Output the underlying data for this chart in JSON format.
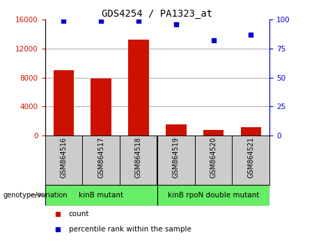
{
  "title": "GDS4254 / PA1323_at",
  "samples": [
    "GSM864516",
    "GSM864517",
    "GSM864518",
    "GSM864519",
    "GSM864520",
    "GSM864521"
  ],
  "counts": [
    9000,
    7900,
    13200,
    1500,
    700,
    1100
  ],
  "percentile_ranks": [
    99,
    99,
    99,
    96,
    82,
    87
  ],
  "ylim_left": [
    0,
    16000
  ],
  "ylim_right": [
    0,
    100
  ],
  "yticks_left": [
    0,
    4000,
    8000,
    12000,
    16000
  ],
  "yticks_right": [
    0,
    25,
    50,
    75,
    100
  ],
  "bar_color": "#cc1100",
  "dot_color": "#0000cc",
  "group1_label": "kinB mutant",
  "group2_label": "kinB rpoN double mutant",
  "group1_indices": [
    0,
    1,
    2
  ],
  "group2_indices": [
    3,
    4,
    5
  ],
  "group_bg_color": "#66ee66",
  "sample_bg_color": "#cccccc",
  "legend_count_label": "count",
  "legend_pct_label": "percentile rank within the sample",
  "genotype_label": "genotype/variation"
}
